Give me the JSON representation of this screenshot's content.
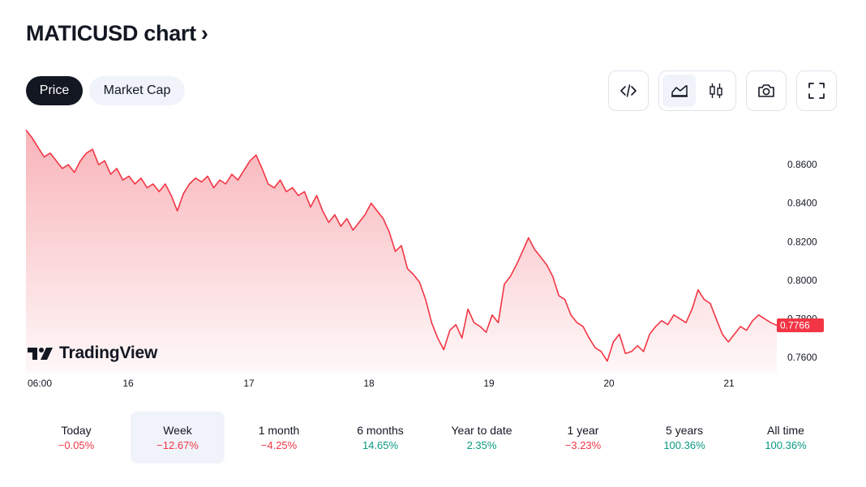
{
  "header": {
    "title": "MATICUSD chart",
    "chevron": "›"
  },
  "tabs": [
    {
      "label": "Price",
      "active": true
    },
    {
      "label": "Market Cap",
      "active": false
    }
  ],
  "toolbar": {
    "embed_icon": "code-icon",
    "area_icon": "area-chart-icon",
    "candles_icon": "candlestick-icon",
    "snapshot_icon": "camera-icon",
    "fullscreen_icon": "fullscreen-icon"
  },
  "brand": {
    "name": "TradingView"
  },
  "colors": {
    "line": "#f23645",
    "fill_top": "#f7a7ad",
    "positive": "#089981",
    "negative": "#f23645",
    "dark": "#131722",
    "light_bg": "#f0f3fa"
  },
  "chart_data": {
    "type": "area",
    "x_ticks": [
      "06:00",
      "16",
      "17",
      "18",
      "19",
      "20",
      "21"
    ],
    "y_ticks": [
      "0.8600",
      "0.8400",
      "0.8200",
      "0.8000",
      "0.7800",
      "0.7600"
    ],
    "ylim": [
      0.752,
      0.879
    ],
    "current_price": "0.7766",
    "series": [
      {
        "values": [
          0.878,
          0.874,
          0.869,
          0.864,
          0.866,
          0.862,
          0.858,
          0.86,
          0.856,
          0.862,
          0.866,
          0.868,
          0.86,
          0.862,
          0.855,
          0.858,
          0.852,
          0.854,
          0.85,
          0.853,
          0.848,
          0.85,
          0.846,
          0.85,
          0.844,
          0.836,
          0.845,
          0.85,
          0.853,
          0.851,
          0.854,
          0.848,
          0.852,
          0.85,
          0.855,
          0.852,
          0.857,
          0.862,
          0.865,
          0.858,
          0.85,
          0.848,
          0.852,
          0.846,
          0.848,
          0.844,
          0.846,
          0.838,
          0.844,
          0.836,
          0.83,
          0.834,
          0.828,
          0.832,
          0.826,
          0.83,
          0.834,
          0.84,
          0.836,
          0.832,
          0.825,
          0.815,
          0.818,
          0.806,
          0.803,
          0.799,
          0.79,
          0.778,
          0.77,
          0.764,
          0.774,
          0.777,
          0.77,
          0.785,
          0.778,
          0.776,
          0.773,
          0.782,
          0.778,
          0.798,
          0.802,
          0.808,
          0.815,
          0.822,
          0.816,
          0.812,
          0.808,
          0.802,
          0.792,
          0.79,
          0.782,
          0.778,
          0.776,
          0.77,
          0.765,
          0.763,
          0.758,
          0.768,
          0.772,
          0.762,
          0.763,
          0.766,
          0.763,
          0.772,
          0.776,
          0.779,
          0.777,
          0.782,
          0.78,
          0.778,
          0.785,
          0.795,
          0.79,
          0.788,
          0.78,
          0.772,
          0.768,
          0.772,
          0.776,
          0.774,
          0.779,
          0.782,
          0.78,
          0.778,
          0.7766
        ]
      }
    ]
  },
  "periods": [
    {
      "label": "Today",
      "value": "−0.05%",
      "sign": "neg",
      "active": false
    },
    {
      "label": "Week",
      "value": "−12.67%",
      "sign": "neg",
      "active": true
    },
    {
      "label": "1 month",
      "value": "−4.25%",
      "sign": "neg",
      "active": false
    },
    {
      "label": "6 months",
      "value": "14.65%",
      "sign": "pos",
      "active": false
    },
    {
      "label": "Year to date",
      "value": "2.35%",
      "sign": "pos",
      "active": false
    },
    {
      "label": "1 year",
      "value": "−3.23%",
      "sign": "neg",
      "active": false
    },
    {
      "label": "5 years",
      "value": "100.36%",
      "sign": "pos",
      "active": false
    },
    {
      "label": "All time",
      "value": "100.36%",
      "sign": "pos",
      "active": false
    }
  ]
}
